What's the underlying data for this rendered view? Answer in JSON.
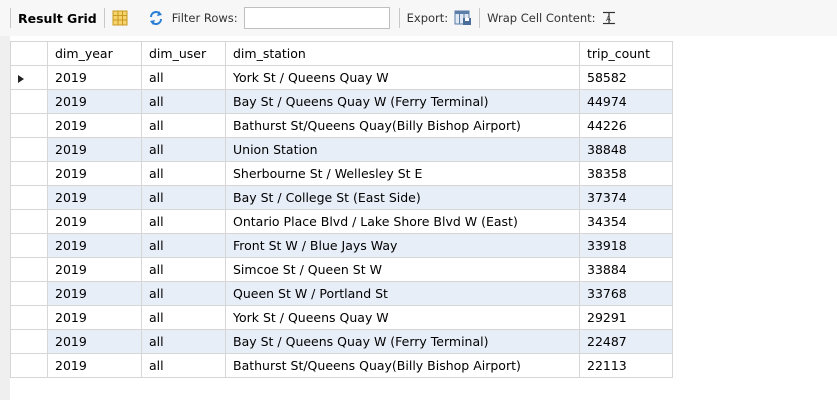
{
  "toolbar": {
    "result_grid_label": "Result Grid",
    "filter_rows_label": "Filter Rows:",
    "filter_rows_value": "",
    "export_label": "Export:",
    "wrap_label": "Wrap Cell Content:"
  },
  "columns": [
    "dim_year",
    "dim_user",
    "dim_station",
    "trip_count"
  ],
  "rows": [
    {
      "dim_year": "2019",
      "dim_user": "all",
      "dim_station": "York St / Queens Quay W",
      "trip_count": "58582"
    },
    {
      "dim_year": "2019",
      "dim_user": "all",
      "dim_station": "Bay St / Queens Quay W (Ferry Terminal)",
      "trip_count": "44974"
    },
    {
      "dim_year": "2019",
      "dim_user": "all",
      "dim_station": "Bathurst St/Queens Quay(Billy Bishop Airport)",
      "trip_count": "44226"
    },
    {
      "dim_year": "2019",
      "dim_user": "all",
      "dim_station": "Union Station",
      "trip_count": "38848"
    },
    {
      "dim_year": "2019",
      "dim_user": "all",
      "dim_station": "Sherbourne St / Wellesley St E",
      "trip_count": "38358"
    },
    {
      "dim_year": "2019",
      "dim_user": "all",
      "dim_station": "Bay St / College St (East Side)",
      "trip_count": "37374"
    },
    {
      "dim_year": "2019",
      "dim_user": "all",
      "dim_station": "Ontario Place Blvd / Lake Shore Blvd W (East)",
      "trip_count": "34354"
    },
    {
      "dim_year": "2019",
      "dim_user": "all",
      "dim_station": "Front St W / Blue Jays Way",
      "trip_count": "33918"
    },
    {
      "dim_year": "2019",
      "dim_user": "all",
      "dim_station": "Simcoe St / Queen St W",
      "trip_count": "33884"
    },
    {
      "dim_year": "2019",
      "dim_user": "all",
      "dim_station": "Queen St W / Portland St",
      "trip_count": "33768"
    },
    {
      "dim_year": "2019",
      "dim_user": "all",
      "dim_station": "York St / Queens Quay W",
      "trip_count": "29291"
    },
    {
      "dim_year": "2019",
      "dim_user": "all",
      "dim_station": "Bay St / Queens Quay W (Ferry Terminal)",
      "trip_count": "22487"
    },
    {
      "dim_year": "2019",
      "dim_user": "all",
      "dim_station": "Bathurst St/Queens Quay(Billy Bishop Airport)",
      "trip_count": "22113"
    }
  ],
  "selected_row_index": 0,
  "icons": {
    "grid": "grid-view-icon",
    "refresh": "refresh-icon",
    "export": "export-icon",
    "wrap": "wrap-text-icon"
  },
  "colors": {
    "toolbar_bg": "#f7f7f7",
    "alt_row_bg": "#e8eef8",
    "grid_line": "#d6d6d6"
  }
}
